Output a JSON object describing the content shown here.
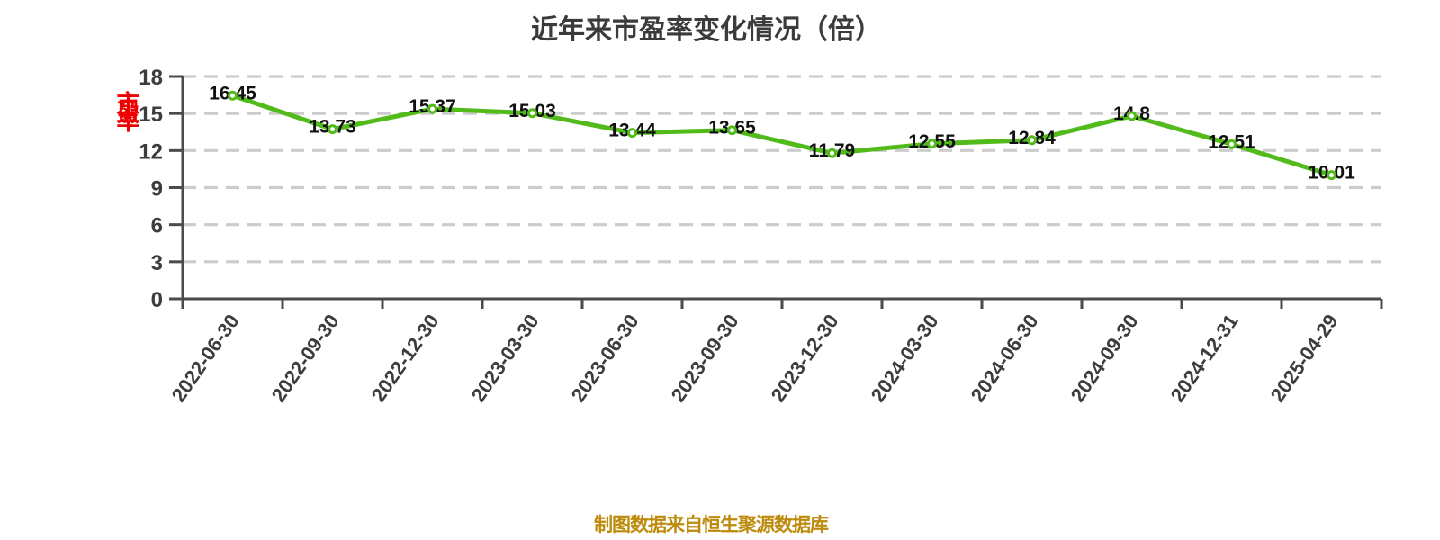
{
  "title": "近年来市盈率变化情况（倍）",
  "series_label": "市盈率",
  "footer": "制图数据来自恒生聚源数据库",
  "colors": {
    "line": "#52bb1b",
    "marker_fill": "#ffffff",
    "value_label": "#111111",
    "grid": "#cccccc",
    "axis": "#4a4a4a",
    "tick_label": "#3d3d3d",
    "title": "#3b3b3b",
    "series_label": "#ee0000",
    "footer": "#bd8a0b"
  },
  "chart_data": {
    "type": "line",
    "title": "近年来市盈率变化情况（倍）",
    "xlabel": "",
    "ylabel": "市盈率",
    "unit": "倍",
    "categories": [
      "2022-06-30",
      "2022-09-30",
      "2022-12-30",
      "2023-03-30",
      "2023-06-30",
      "2023-09-30",
      "2023-12-30",
      "2024-03-30",
      "2024-06-30",
      "2024-09-30",
      "2024-12-31",
      "2025-04-29"
    ],
    "values": [
      16.45,
      13.73,
      15.37,
      15.03,
      13.44,
      13.65,
      11.79,
      12.55,
      12.84,
      14.8,
      12.51,
      10.01
    ],
    "ylim": [
      0,
      18
    ],
    "yticks": [
      0,
      3,
      6,
      9,
      12,
      15,
      18
    ],
    "grid": "horizontal-dashed",
    "marker": "circle-white-green-border",
    "value_labels_shown": true,
    "legend_position": "left-of-axis",
    "source_note": "制图数据来自恒生聚源数据库"
  }
}
